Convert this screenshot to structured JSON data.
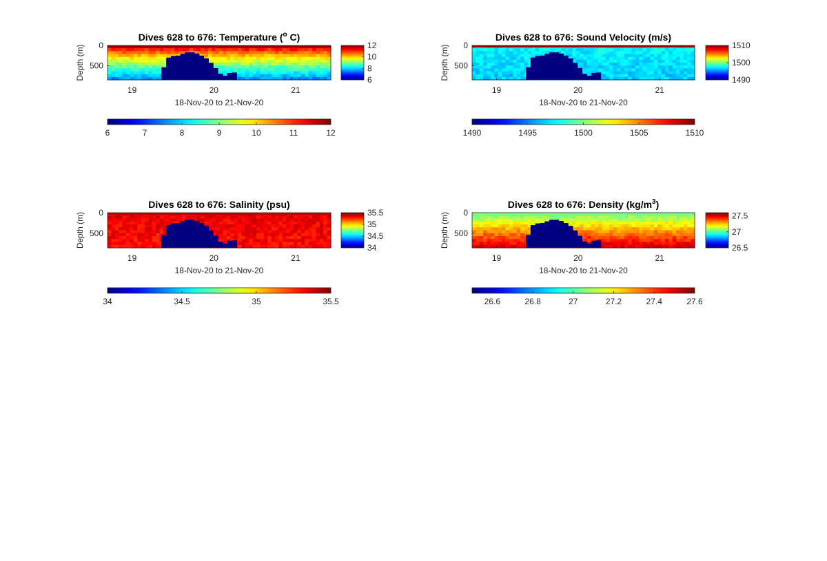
{
  "chart_data": [
    {
      "type": "heatmap",
      "title": "Dives 628 to 676: Temperature (° C)",
      "title_parts": {
        "pre": "Dives 628 to 676: Temperature (",
        "sup": "o",
        "post": " C)"
      },
      "xlabel": "18-Nov-20 to 21-Nov-20",
      "ylabel": "Depth (m)",
      "xlim": [
        18.7,
        21.43
      ],
      "ylim": [
        0,
        850
      ],
      "x_ticks": [
        "19",
        "20",
        "21"
      ],
      "y_ticks": [
        "0",
        "500"
      ],
      "clim": [
        6,
        12
      ],
      "colorbar_ticks": [
        "12",
        "10",
        "8",
        "6"
      ],
      "h_colorbar_ticks": [
        "6",
        "7",
        "8",
        "9",
        "10",
        "11",
        "12"
      ],
      "profile": {
        "surface": 11.6,
        "deep": 7.6
      },
      "gap": {
        "x_start": 19.36,
        "x_end": 20.28,
        "value": 6
      },
      "gap_top_depths_m": [
        540,
        300,
        260,
        250,
        210,
        170,
        170,
        200,
        250,
        320,
        430,
        560,
        700,
        750,
        680,
        670
      ]
    },
    {
      "type": "heatmap",
      "title": "Dives 628 to 676: Sound Velocity (m/s)",
      "title_parts": {
        "pre": "Dives 628 to 676: Sound Velocity (m/s)",
        "sup": "",
        "post": ""
      },
      "xlabel": "18-Nov-20 to 21-Nov-20",
      "ylabel": "Depth (m)",
      "xlim": [
        18.7,
        21.43
      ],
      "ylim": [
        0,
        850
      ],
      "x_ticks": [
        "19",
        "20",
        "21"
      ],
      "y_ticks": [
        "0",
        "500"
      ],
      "clim": [
        1490,
        1510
      ],
      "colorbar_ticks": [
        "1510",
        "1500",
        "1490"
      ],
      "h_colorbar_ticks": [
        "1490",
        "1495",
        "1500",
        "1505",
        "1510"
      ],
      "profile": {
        "surface": 1497.5,
        "deep": 1496.5
      },
      "gap": {
        "x_start": 19.36,
        "x_end": 20.28,
        "value": 1490
      },
      "gap_top_depths_m": [
        540,
        300,
        260,
        250,
        210,
        170,
        170,
        200,
        250,
        320,
        430,
        560,
        700,
        750,
        680,
        670
      ]
    },
    {
      "type": "heatmap",
      "title": "Dives 628 to 676: Salinity (psu)",
      "title_parts": {
        "pre": "Dives 628 to 676: Salinity (psu)",
        "sup": "",
        "post": ""
      },
      "xlabel": "18-Nov-20 to 21-Nov-20",
      "ylabel": "Depth (m)",
      "xlim": [
        18.7,
        21.43
      ],
      "ylim": [
        0,
        850
      ],
      "x_ticks": [
        "19",
        "20",
        "21"
      ],
      "y_ticks": [
        "0",
        "500"
      ],
      "clim": [
        34,
        35.5
      ],
      "colorbar_ticks": [
        "35.5",
        "35",
        "34.5",
        "34"
      ],
      "h_colorbar_ticks": [
        "34",
        "34.5",
        "35",
        "35.5"
      ],
      "profile": {
        "surface": 35.35,
        "deep": 35.3
      },
      "gap": {
        "x_start": 19.36,
        "x_end": 20.28,
        "value": 34
      },
      "gap_top_depths_m": [
        540,
        300,
        260,
        250,
        210,
        170,
        170,
        200,
        250,
        320,
        430,
        560,
        700,
        750,
        680,
        670
      ]
    },
    {
      "type": "heatmap",
      "title": "Dives 628 to 676: Density (kg/m3)",
      "title_parts": {
        "pre": "Dives 628 to 676: Density (kg/m",
        "sup": "3",
        "post": ")"
      },
      "xlabel": "18-Nov-20 to 21-Nov-20",
      "ylabel": "Depth (m)",
      "xlim": [
        18.7,
        21.43
      ],
      "ylim": [
        0,
        850
      ],
      "x_ticks": [
        "19",
        "20",
        "21"
      ],
      "y_ticks": [
        "0",
        "500"
      ],
      "clim": [
        26.5,
        27.6
      ],
      "colorbar_ticks": [
        "27.5",
        "27",
        "26.5"
      ],
      "h_colorbar_ticks": [
        "26.6",
        "26.8",
        "27",
        "27.2",
        "27.4",
        "27.6"
      ],
      "profile": {
        "surface": 27.0,
        "deep": 27.5
      },
      "gap": {
        "x_start": 19.36,
        "x_end": 20.28,
        "value": 26.5
      },
      "gap_top_depths_m": [
        540,
        300,
        260,
        250,
        210,
        170,
        170,
        200,
        250,
        320,
        430,
        560,
        700,
        750,
        680,
        670
      ]
    }
  ],
  "colormap": "jet"
}
